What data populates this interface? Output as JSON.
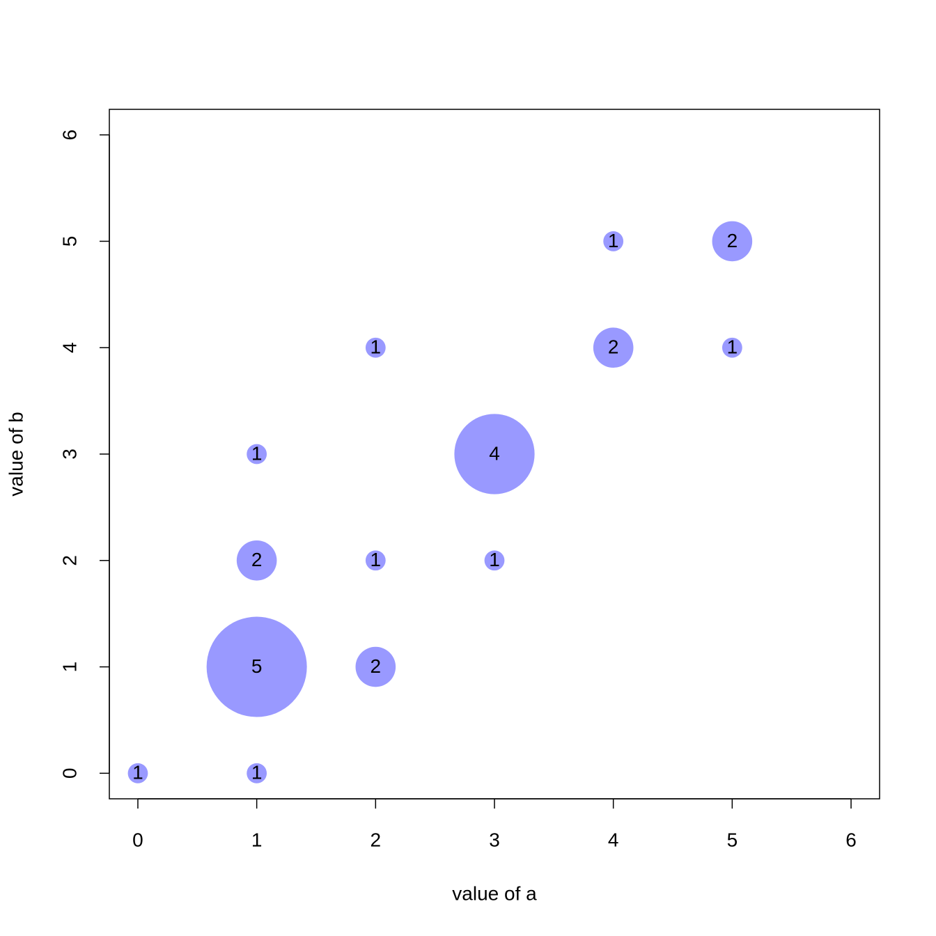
{
  "chart_data": {
    "type": "bubble",
    "xlabel": "value of a",
    "ylabel": "value of b",
    "x": [
      0,
      1,
      1,
      2,
      1,
      2,
      3,
      1,
      3,
      2,
      4,
      5,
      4,
      5
    ],
    "values": [
      0,
      0,
      1,
      1,
      2,
      2,
      2,
      3,
      3,
      4,
      4,
      4,
      5,
      5
    ],
    "sizes": [
      1,
      1,
      5,
      2,
      2,
      1,
      1,
      1,
      4,
      1,
      2,
      1,
      1,
      2
    ],
    "color": "#9999ff",
    "xlim": [
      -0.24,
      6.24
    ],
    "ylim": [
      -0.24,
      6.24
    ],
    "xticks": [
      0,
      1,
      2,
      3,
      4,
      5,
      6
    ],
    "yticks": [
      0,
      1,
      2,
      3,
      4,
      5,
      6
    ]
  }
}
